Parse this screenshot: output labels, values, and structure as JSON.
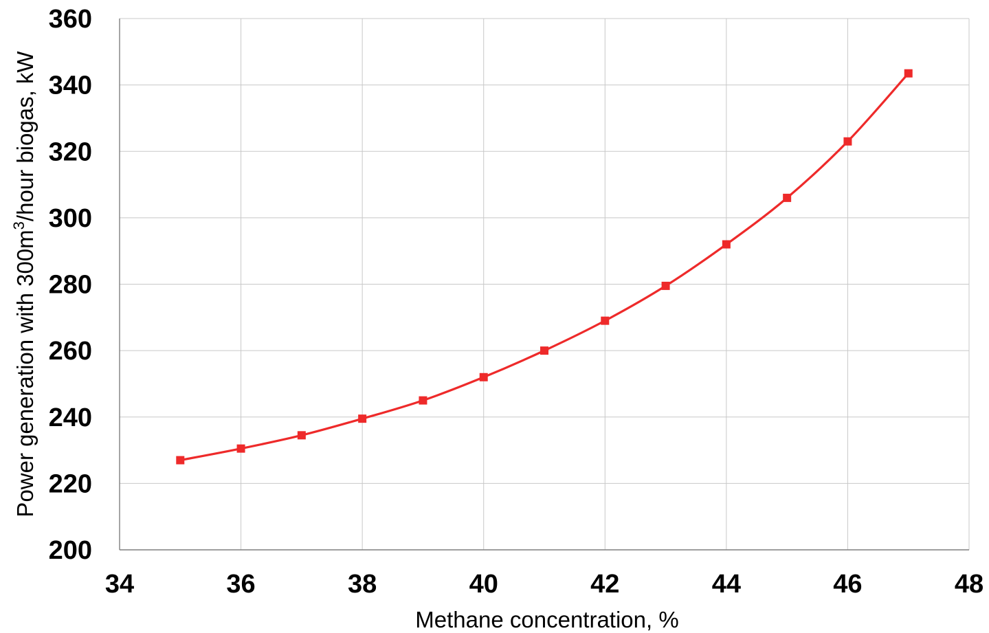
{
  "chart_data": {
    "type": "line",
    "title": "",
    "xlabel": "Methane concentration, %",
    "ylabel": {
      "prefix": "Power generation with 300m",
      "superscript": "3",
      "suffix": "/hour biogas, kW"
    },
    "xlim": [
      34,
      48
    ],
    "ylim": [
      200,
      360
    ],
    "x_ticks": [
      "34",
      "36",
      "38",
      "40",
      "42",
      "44",
      "46",
      "48"
    ],
    "y_ticks": [
      "200",
      "220",
      "240",
      "260",
      "280",
      "300",
      "320",
      "340",
      "360"
    ],
    "grid": true,
    "legend": "none",
    "series": [
      {
        "color": "#ee2a2a",
        "marker": "square",
        "x": [
          35,
          36,
          37,
          38,
          39,
          40,
          41,
          42,
          43,
          44,
          45,
          46,
          47
        ],
        "y": [
          227,
          230.5,
          234.5,
          239.5,
          245,
          252,
          260,
          269,
          279.5,
          292,
          306,
          323,
          343.5
        ]
      }
    ]
  }
}
